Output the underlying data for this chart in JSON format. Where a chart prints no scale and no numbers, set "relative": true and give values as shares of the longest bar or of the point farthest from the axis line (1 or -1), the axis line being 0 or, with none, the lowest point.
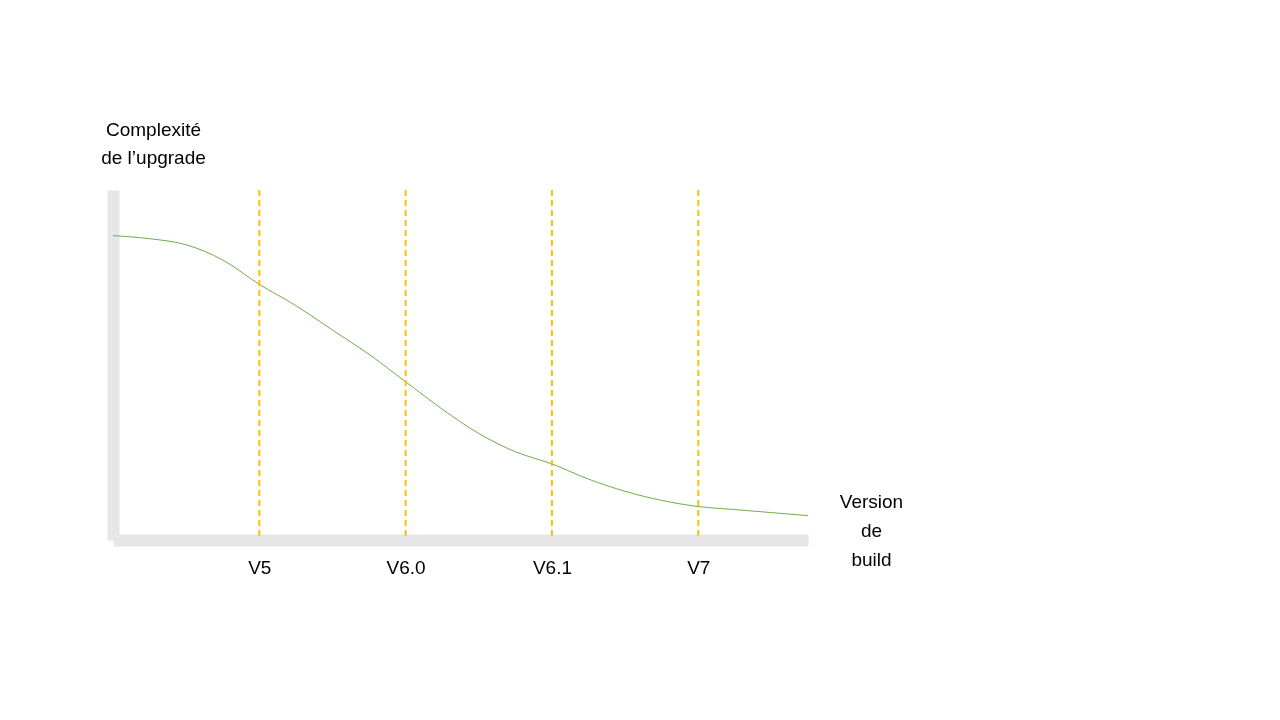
{
  "chart_data": {
    "type": "line",
    "relative": true,
    "xlabel": "Version\nde\nbuild",
    "ylabel": "Complexité\nde l’upgrade",
    "categories": [
      null,
      null,
      null,
      null,
      "V5",
      null,
      null,
      null,
      "V6.0",
      null,
      null,
      null,
      "V6.1",
      null,
      null,
      null,
      "V7",
      null,
      null,
      null
    ],
    "series": [
      {
        "color": "#70ad47",
        "values": [
          1.0,
          0.99,
          0.97,
          0.92,
          0.84,
          0.77,
          0.69,
          0.61,
          0.52,
          0.43,
          0.35,
          0.29,
          0.25,
          0.2,
          0.16,
          0.13,
          0.11,
          0.1,
          0.09,
          0.08
        ]
      }
    ],
    "ref_lines": [
      {
        "axis": "x",
        "value": "V5",
        "color": "#ffc000",
        "line_style": "dashed"
      },
      {
        "axis": "x",
        "value": "V6.0",
        "color": "#ffc000",
        "line_style": "dashed"
      },
      {
        "axis": "x",
        "value": "V6.1",
        "color": "#ffc000",
        "line_style": "dashed"
      },
      {
        "axis": "x",
        "value": "V7",
        "color": "#ffc000",
        "line_style": "dashed"
      }
    ],
    "grid": false,
    "marker": "none"
  }
}
